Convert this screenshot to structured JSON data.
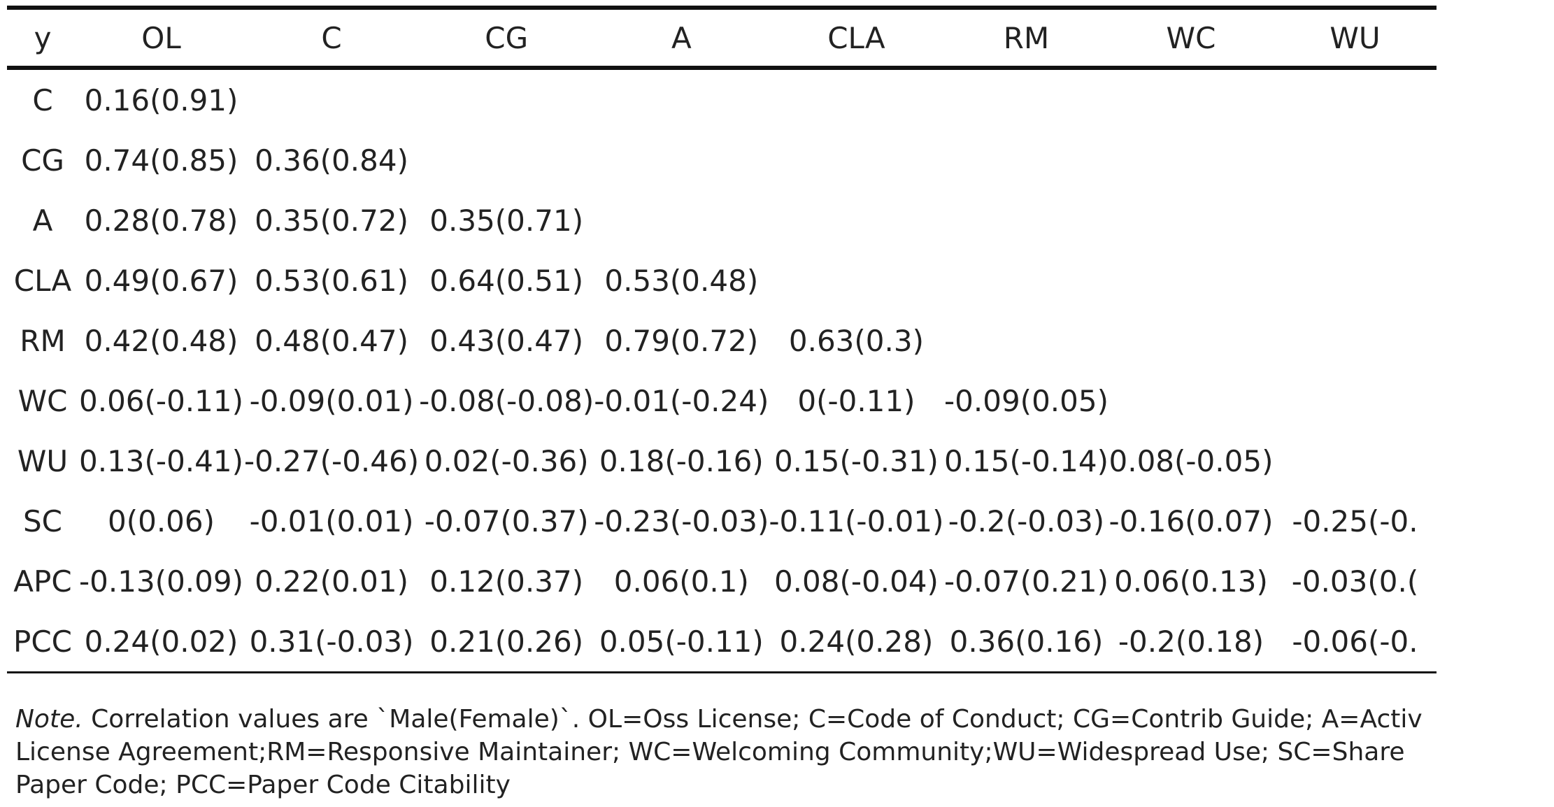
{
  "table": {
    "corner_label": "y",
    "columns": [
      "OL",
      "C",
      "CG",
      "A",
      "CLA",
      "RM",
      "WC",
      "WU"
    ],
    "rows": [
      {
        "label": "C",
        "cells": [
          "0.16(0.91)",
          "",
          "",
          "",
          "",
          "",
          "",
          ""
        ]
      },
      {
        "label": "CG",
        "cells": [
          "0.74(0.85)",
          "0.36(0.84)",
          "",
          "",
          "",
          "",
          "",
          ""
        ]
      },
      {
        "label": "A",
        "cells": [
          "0.28(0.78)",
          "0.35(0.72)",
          "0.35(0.71)",
          "",
          "",
          "",
          "",
          ""
        ]
      },
      {
        "label": "CLA",
        "cells": [
          "0.49(0.67)",
          "0.53(0.61)",
          "0.64(0.51)",
          "0.53(0.48)",
          "",
          "",
          "",
          ""
        ]
      },
      {
        "label": "RM",
        "cells": [
          "0.42(0.48)",
          "0.48(0.47)",
          "0.43(0.47)",
          "0.79(0.72)",
          "0.63(0.3)",
          "",
          "",
          ""
        ]
      },
      {
        "label": "WC",
        "cells": [
          "0.06(-0.11)",
          "-0.09(0.01)",
          "-0.08(-0.08)",
          "-0.01(-0.24)",
          "0(-0.11)",
          "-0.09(0.05)",
          "",
          ""
        ]
      },
      {
        "label": "WU",
        "cells": [
          "0.13(-0.41)",
          "-0.27(-0.46)",
          "0.02(-0.36)",
          "0.18(-0.16)",
          "0.15(-0.31)",
          "0.15(-0.14)",
          "0.08(-0.05)",
          ""
        ]
      },
      {
        "label": "SC",
        "cells": [
          "0(0.06)",
          "-0.01(0.01)",
          "-0.07(0.37)",
          "-0.23(-0.03)",
          "-0.11(-0.01)",
          "-0.2(-0.03)",
          "-0.16(0.07)",
          "-0.25(-0."
        ]
      },
      {
        "label": "APC",
        "cells": [
          "-0.13(0.09)",
          "0.22(0.01)",
          "0.12(0.37)",
          "0.06(0.1)",
          "0.08(-0.04)",
          "-0.07(0.21)",
          "0.06(0.13)",
          "-0.03(0.("
        ]
      },
      {
        "label": "PCC",
        "cells": [
          "0.24(0.02)",
          "0.31(-0.03)",
          "0.21(0.26)",
          "0.05(-0.11)",
          "0.24(0.28)",
          "0.36(0.16)",
          "-0.2(0.18)",
          "-0.06(-0."
        ]
      }
    ]
  },
  "note": {
    "label": "Note.",
    "lines": [
      " Correlation values are `Male(Female)`. OL=Oss License; C=Code of Conduct; CG=Contrib Guide; A=Activ",
      "License Agreement;RM=Responsive Maintainer; WC=Welcoming Community;WU=Widespread Use; SC=Share",
      "Paper Code; PCC=Paper Code Citability"
    ]
  }
}
